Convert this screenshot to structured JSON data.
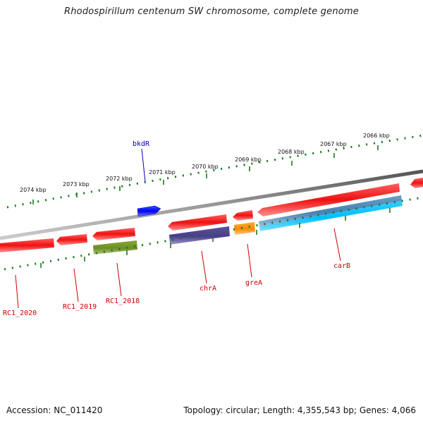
{
  "title": "Rhodospirillum centenum SW chromosome, complete genome",
  "footer": {
    "accession": "Accession: NC_011420",
    "summary": "Topology: circular; Length: 4,355,543 bp; Genes: 4,066"
  },
  "scale_labels": [
    "2074 kbp",
    "2073 kbp",
    "2072 kbp",
    "2071 kbp",
    "2070 kbp",
    "2069 kbp",
    "2068 kbp",
    "2067 kbp",
    "2066 kbp"
  ],
  "genes": [
    {
      "name": "RC1_2020",
      "color": "#ee1111",
      "strand": "-"
    },
    {
      "name": "RC1_2019",
      "color": "#ee1111",
      "strand": "-"
    },
    {
      "name": "RC1_2018",
      "color": "#ee1111",
      "strand": "-"
    },
    {
      "name": "bkdR",
      "color": "#0000ee",
      "strand": "+"
    },
    {
      "name": "chrA",
      "color": "#ee1111",
      "strand": "-"
    },
    {
      "name": "greA",
      "color": "#ee1111",
      "strand": "-"
    },
    {
      "name": "carB",
      "color": "#ee1111",
      "strand": "-"
    }
  ],
  "colors": {
    "cds": "#ee1111",
    "cds_forward": "#0000ee",
    "orthology_green": "#6b8e23",
    "orthology_purple": "#483d8b",
    "orthology_orange": "#ff8c00",
    "orthology_cyan": "#00bfff",
    "orthology_steel": "#4682b4",
    "backbone": "#777777",
    "ticks": "#1a7a1a"
  }
}
